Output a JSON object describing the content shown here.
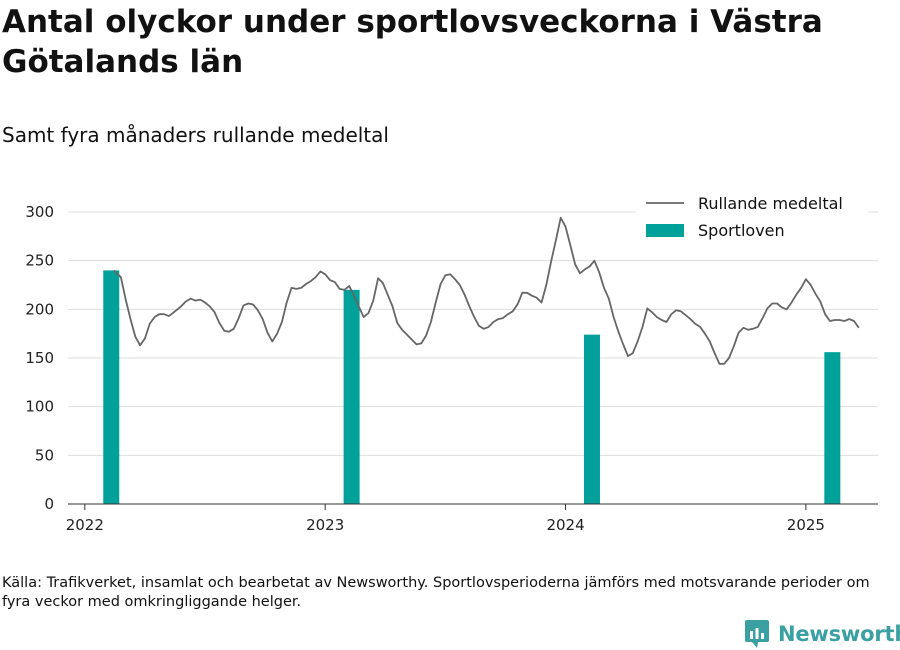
{
  "header": {
    "title": "Antal olyckor under sportlovsveckorna i Västra Götalands län",
    "subtitle": "Samt fyra månaders rullande medeltal"
  },
  "footer": {
    "source": "Källa: Trafikverket, insamlat och bearbetat av Newsworthy. Sportlovsperioderna jämförs med motsvarande perioder om fyra veckor med omkringliggande helger.",
    "brand": "Newsworthy"
  },
  "colors": {
    "bar": "#00a19a",
    "line": "#666666",
    "grid": "#dddddd",
    "axis": "#333333",
    "brand": "#3aa0a1"
  },
  "chart_data": {
    "type": "bar+line",
    "title": "Antal olyckor under sportlovsveckorna i Västra Götalands län",
    "subtitle": "Samt fyra månaders rullande medeltal",
    "xlabel": "",
    "ylabel": "",
    "ylim": [
      0,
      300
    ],
    "xlim": [
      2021.93,
      2025.3
    ],
    "y_ticks": [
      0,
      50,
      100,
      150,
      200,
      250,
      300
    ],
    "x_ticks": [
      2022,
      2023,
      2024,
      2025
    ],
    "x_tick_labels": [
      "2022",
      "2023",
      "2024",
      "2025"
    ],
    "grid": true,
    "legend_position": "top-right",
    "series": [
      {
        "name": "Rullande medeltal",
        "type": "line",
        "points": [
          [
            2022.12,
            240
          ],
          [
            2022.15,
            233
          ],
          [
            2022.17,
            210
          ],
          [
            2022.19,
            190
          ],
          [
            2022.21,
            172
          ],
          [
            2022.23,
            163
          ],
          [
            2022.25,
            170
          ],
          [
            2022.27,
            185
          ],
          [
            2022.29,
            192
          ],
          [
            2022.31,
            195
          ],
          [
            2022.33,
            195
          ],
          [
            2022.35,
            193
          ],
          [
            2022.37,
            197
          ],
          [
            2022.4,
            203
          ],
          [
            2022.42,
            208
          ],
          [
            2022.44,
            211
          ],
          [
            2022.46,
            209
          ],
          [
            2022.48,
            210
          ],
          [
            2022.5,
            207
          ],
          [
            2022.52,
            203
          ],
          [
            2022.54,
            197
          ],
          [
            2022.56,
            186
          ],
          [
            2022.58,
            178
          ],
          [
            2022.6,
            177
          ],
          [
            2022.62,
            180
          ],
          [
            2022.64,
            191
          ],
          [
            2022.66,
            204
          ],
          [
            2022.68,
            206
          ],
          [
            2022.7,
            205
          ],
          [
            2022.72,
            199
          ],
          [
            2022.74,
            190
          ],
          [
            2022.76,
            176
          ],
          [
            2022.78,
            167
          ],
          [
            2022.8,
            175
          ],
          [
            2022.82,
            187
          ],
          [
            2022.84,
            207
          ],
          [
            2022.86,
            222
          ],
          [
            2022.88,
            221
          ],
          [
            2022.9,
            222
          ],
          [
            2022.92,
            226
          ],
          [
            2022.94,
            229
          ],
          [
            2022.96,
            233
          ],
          [
            2022.98,
            239
          ],
          [
            2023.0,
            236
          ],
          [
            2023.02,
            230
          ],
          [
            2023.04,
            228
          ],
          [
            2023.06,
            221
          ],
          [
            2023.08,
            220
          ],
          [
            2023.1,
            224
          ],
          [
            2023.12,
            214
          ],
          [
            2023.14,
            203
          ],
          [
            2023.16,
            192
          ],
          [
            2023.18,
            196
          ],
          [
            2023.2,
            209
          ],
          [
            2023.22,
            232
          ],
          [
            2023.24,
            227
          ],
          [
            2023.26,
            215
          ],
          [
            2023.28,
            203
          ],
          [
            2023.3,
            186
          ],
          [
            2023.32,
            179
          ],
          [
            2023.34,
            174
          ],
          [
            2023.36,
            169
          ],
          [
            2023.38,
            164
          ],
          [
            2023.4,
            165
          ],
          [
            2023.42,
            173
          ],
          [
            2023.44,
            187
          ],
          [
            2023.46,
            207
          ],
          [
            2023.48,
            226
          ],
          [
            2023.5,
            235
          ],
          [
            2023.52,
            236
          ],
          [
            2023.54,
            231
          ],
          [
            2023.56,
            225
          ],
          [
            2023.58,
            215
          ],
          [
            2023.6,
            203
          ],
          [
            2023.62,
            192
          ],
          [
            2023.64,
            183
          ],
          [
            2023.66,
            180
          ],
          [
            2023.68,
            182
          ],
          [
            2023.7,
            187
          ],
          [
            2023.72,
            190
          ],
          [
            2023.74,
            191
          ],
          [
            2023.76,
            195
          ],
          [
            2023.78,
            198
          ],
          [
            2023.8,
            205
          ],
          [
            2023.82,
            217
          ],
          [
            2023.84,
            217
          ],
          [
            2023.86,
            214
          ],
          [
            2023.88,
            212
          ],
          [
            2023.9,
            207
          ],
          [
            2023.92,
            225
          ],
          [
            2023.94,
            249
          ],
          [
            2023.96,
            271
          ],
          [
            2023.98,
            294
          ],
          [
            2024.0,
            285
          ],
          [
            2024.02,
            266
          ],
          [
            2024.04,
            246
          ],
          [
            2024.06,
            237
          ],
          [
            2024.08,
            241
          ],
          [
            2024.1,
            244
          ],
          [
            2024.12,
            250
          ],
          [
            2024.14,
            238
          ],
          [
            2024.16,
            222
          ],
          [
            2024.18,
            211
          ],
          [
            2024.2,
            192
          ],
          [
            2024.22,
            177
          ],
          [
            2024.24,
            164
          ],
          [
            2024.26,
            152
          ],
          [
            2024.28,
            155
          ],
          [
            2024.3,
            167
          ],
          [
            2024.32,
            182
          ],
          [
            2024.34,
            201
          ],
          [
            2024.36,
            197
          ],
          [
            2024.38,
            192
          ],
          [
            2024.4,
            189
          ],
          [
            2024.42,
            187
          ],
          [
            2024.44,
            195
          ],
          [
            2024.46,
            199
          ],
          [
            2024.48,
            198
          ],
          [
            2024.5,
            194
          ],
          [
            2024.52,
            190
          ],
          [
            2024.54,
            185
          ],
          [
            2024.56,
            182
          ],
          [
            2024.58,
            175
          ],
          [
            2024.6,
            167
          ],
          [
            2024.62,
            155
          ],
          [
            2024.64,
            144
          ],
          [
            2024.66,
            144
          ],
          [
            2024.68,
            150
          ],
          [
            2024.7,
            162
          ],
          [
            2024.72,
            176
          ],
          [
            2024.74,
            181
          ],
          [
            2024.76,
            179
          ],
          [
            2024.78,
            180
          ],
          [
            2024.8,
            182
          ],
          [
            2024.82,
            191
          ],
          [
            2024.84,
            201
          ],
          [
            2024.86,
            206
          ],
          [
            2024.88,
            206
          ],
          [
            2024.9,
            202
          ],
          [
            2024.92,
            200
          ],
          [
            2024.94,
            207
          ],
          [
            2024.96,
            215
          ],
          [
            2024.98,
            222
          ],
          [
            2025.0,
            231
          ],
          [
            2025.02,
            225
          ],
          [
            2025.04,
            216
          ],
          [
            2025.06,
            208
          ],
          [
            2025.08,
            195
          ],
          [
            2025.1,
            188
          ],
          [
            2025.12,
            189
          ],
          [
            2025.14,
            189
          ],
          [
            2025.16,
            188
          ],
          [
            2025.18,
            190
          ],
          [
            2025.2,
            188
          ],
          [
            2025.22,
            181
          ]
        ]
      },
      {
        "name": "Sportloven",
        "type": "bar",
        "points": [
          [
            2022.11,
            240
          ],
          [
            2023.11,
            220
          ],
          [
            2024.11,
            174
          ],
          [
            2025.11,
            156
          ]
        ]
      }
    ]
  }
}
